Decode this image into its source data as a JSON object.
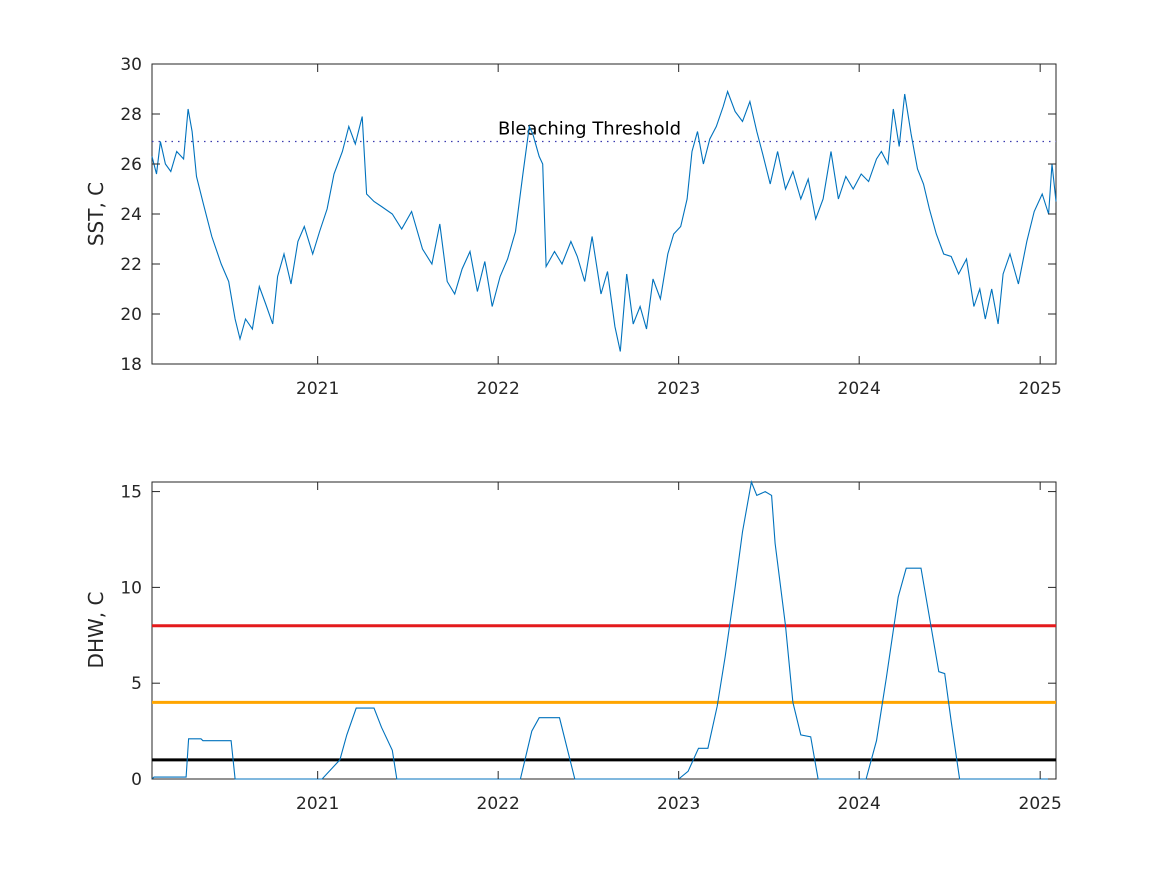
{
  "chart_data": [
    {
      "type": "line",
      "ylabel": "SST, C",
      "xlim": [
        "2020-02-01",
        "2025-02-02"
      ],
      "ylim": [
        18,
        30
      ],
      "yticks": [
        18,
        20,
        22,
        24,
        26,
        28,
        30
      ],
      "xticks": [
        {
          "date": "2021-01-01",
          "label": "2021"
        },
        {
          "date": "2022-01-01",
          "label": "2022"
        },
        {
          "date": "2023-01-01",
          "label": "2023"
        },
        {
          "date": "2024-01-01",
          "label": "2024"
        },
        {
          "date": "2025-01-01",
          "label": "2025"
        }
      ],
      "series": [
        {
          "color": "#0072BD",
          "points": [
            [
              "2020-02-01",
              26.3
            ],
            [
              "2020-02-10",
              25.6
            ],
            [
              "2020-02-18",
              26.9
            ],
            [
              "2020-02-28",
              26.0
            ],
            [
              "2020-03-10",
              25.7
            ],
            [
              "2020-03-22",
              26.5
            ],
            [
              "2020-04-05",
              26.2
            ],
            [
              "2020-04-14",
              28.2
            ],
            [
              "2020-04-22",
              27.3
            ],
            [
              "2020-05-01",
              25.5
            ],
            [
              "2020-05-15",
              24.4
            ],
            [
              "2020-06-01",
              23.1
            ],
            [
              "2020-06-20",
              22.0
            ],
            [
              "2020-07-05",
              21.3
            ],
            [
              "2020-07-18",
              19.8
            ],
            [
              "2020-07-28",
              19.0
            ],
            [
              "2020-08-08",
              19.8
            ],
            [
              "2020-08-22",
              19.4
            ],
            [
              "2020-09-05",
              21.1
            ],
            [
              "2020-09-18",
              20.4
            ],
            [
              "2020-10-02",
              19.6
            ],
            [
              "2020-10-12",
              21.5
            ],
            [
              "2020-10-25",
              22.4
            ],
            [
              "2020-11-08",
              21.2
            ],
            [
              "2020-11-22",
              22.9
            ],
            [
              "2020-12-05",
              23.5
            ],
            [
              "2020-12-22",
              22.4
            ],
            [
              "2021-01-05",
              23.3
            ],
            [
              "2021-01-20",
              24.2
            ],
            [
              "2021-02-03",
              25.6
            ],
            [
              "2021-02-20",
              26.5
            ],
            [
              "2021-03-05",
              27.5
            ],
            [
              "2021-03-18",
              26.8
            ],
            [
              "2021-04-01",
              27.9
            ],
            [
              "2021-04-10",
              24.8
            ],
            [
              "2021-04-25",
              24.5
            ],
            [
              "2021-05-10",
              24.3
            ],
            [
              "2021-06-01",
              24.0
            ],
            [
              "2021-06-20",
              23.4
            ],
            [
              "2021-07-10",
              24.1
            ],
            [
              "2021-08-01",
              22.6
            ],
            [
              "2021-08-20",
              22.0
            ],
            [
              "2021-09-05",
              23.6
            ],
            [
              "2021-09-20",
              21.3
            ],
            [
              "2021-10-05",
              20.8
            ],
            [
              "2021-10-20",
              21.8
            ],
            [
              "2021-11-05",
              22.5
            ],
            [
              "2021-11-20",
              20.9
            ],
            [
              "2021-12-05",
              22.1
            ],
            [
              "2021-12-20",
              20.3
            ],
            [
              "2022-01-05",
              21.5
            ],
            [
              "2022-01-20",
              22.2
            ],
            [
              "2022-02-05",
              23.3
            ],
            [
              "2022-02-20",
              25.6
            ],
            [
              "2022-03-05",
              27.5
            ],
            [
              "2022-03-12",
              27.2
            ],
            [
              "2022-03-25",
              26.3
            ],
            [
              "2022-04-01",
              26.0
            ],
            [
              "2022-04-08",
              21.9
            ],
            [
              "2022-04-25",
              22.5
            ],
            [
              "2022-05-10",
              22.0
            ],
            [
              "2022-05-28",
              22.9
            ],
            [
              "2022-06-10",
              22.3
            ],
            [
              "2022-06-25",
              21.3
            ],
            [
              "2022-07-10",
              23.1
            ],
            [
              "2022-07-28",
              20.8
            ],
            [
              "2022-08-10",
              21.7
            ],
            [
              "2022-08-25",
              19.5
            ],
            [
              "2022-09-05",
              18.5
            ],
            [
              "2022-09-18",
              21.6
            ],
            [
              "2022-10-01",
              19.6
            ],
            [
              "2022-10-15",
              20.3
            ],
            [
              "2022-10-28",
              19.4
            ],
            [
              "2022-11-10",
              21.4
            ],
            [
              "2022-11-25",
              20.6
            ],
            [
              "2022-12-10",
              22.4
            ],
            [
              "2022-12-22",
              23.2
            ],
            [
              "2023-01-05",
              23.5
            ],
            [
              "2023-01-18",
              24.6
            ],
            [
              "2023-01-28",
              26.5
            ],
            [
              "2023-02-08",
              27.3
            ],
            [
              "2023-02-20",
              26.0
            ],
            [
              "2023-03-05",
              27.0
            ],
            [
              "2023-03-18",
              27.5
            ],
            [
              "2023-04-01",
              28.3
            ],
            [
              "2023-04-10",
              28.9
            ],
            [
              "2023-04-25",
              28.1
            ],
            [
              "2023-05-10",
              27.7
            ],
            [
              "2023-05-25",
              28.5
            ],
            [
              "2023-06-08",
              27.3
            ],
            [
              "2023-06-20",
              26.4
            ],
            [
              "2023-07-05",
              25.2
            ],
            [
              "2023-07-20",
              26.5
            ],
            [
              "2023-08-05",
              25.0
            ],
            [
              "2023-08-20",
              25.7
            ],
            [
              "2023-09-05",
              24.6
            ],
            [
              "2023-09-20",
              25.4
            ],
            [
              "2023-10-05",
              23.8
            ],
            [
              "2023-10-20",
              24.6
            ],
            [
              "2023-11-05",
              26.5
            ],
            [
              "2023-11-20",
              24.6
            ],
            [
              "2023-12-05",
              25.5
            ],
            [
              "2023-12-20",
              25.0
            ],
            [
              "2024-01-05",
              25.6
            ],
            [
              "2024-01-20",
              25.3
            ],
            [
              "2024-02-05",
              26.2
            ],
            [
              "2024-02-15",
              26.5
            ],
            [
              "2024-02-28",
              26.0
            ],
            [
              "2024-03-10",
              28.2
            ],
            [
              "2024-03-22",
              26.7
            ],
            [
              "2024-04-02",
              28.8
            ],
            [
              "2024-04-15",
              27.2
            ],
            [
              "2024-04-28",
              25.8
            ],
            [
              "2024-05-10",
              25.2
            ],
            [
              "2024-05-22",
              24.2
            ],
            [
              "2024-06-05",
              23.2
            ],
            [
              "2024-06-20",
              22.4
            ],
            [
              "2024-07-05",
              22.3
            ],
            [
              "2024-07-20",
              21.6
            ],
            [
              "2024-08-05",
              22.2
            ],
            [
              "2024-08-20",
              20.3
            ],
            [
              "2024-09-01",
              21.0
            ],
            [
              "2024-09-12",
              19.8
            ],
            [
              "2024-09-25",
              21.0
            ],
            [
              "2024-10-08",
              19.6
            ],
            [
              "2024-10-18",
              21.6
            ],
            [
              "2024-11-01",
              22.4
            ],
            [
              "2024-11-18",
              21.2
            ],
            [
              "2024-12-05",
              22.9
            ],
            [
              "2024-12-20",
              24.1
            ],
            [
              "2025-01-05",
              24.8
            ],
            [
              "2025-01-18",
              24.0
            ],
            [
              "2025-01-25",
              26.0
            ],
            [
              "2025-02-02",
              24.5
            ]
          ]
        }
      ],
      "reference_line": {
        "y": 26.9,
        "label": "Bleaching Threshold",
        "style": "dotted",
        "color": "#3B3BAF"
      }
    },
    {
      "type": "line",
      "ylabel": "DHW, C",
      "xlim": [
        "2020-02-01",
        "2025-02-02"
      ],
      "ylim": [
        0,
        15.5
      ],
      "yticks": [
        0,
        5,
        10,
        15
      ],
      "xticks": [
        {
          "date": "2021-01-01",
          "label": "2021"
        },
        {
          "date": "2022-01-01",
          "label": "2022"
        },
        {
          "date": "2023-01-01",
          "label": "2023"
        },
        {
          "date": "2024-01-01",
          "label": "2024"
        },
        {
          "date": "2025-01-01",
          "label": "2025"
        }
      ],
      "series": [
        {
          "color": "#0072BD",
          "points": [
            [
              "2020-02-01",
              0.0
            ],
            [
              "2020-02-05",
              0.1
            ],
            [
              "2020-04-10",
              0.1
            ],
            [
              "2020-04-15",
              2.1
            ],
            [
              "2020-05-10",
              2.1
            ],
            [
              "2020-05-14",
              2.0
            ],
            [
              "2020-07-10",
              2.0
            ],
            [
              "2020-07-18",
              0.0
            ],
            [
              "2021-01-10",
              0.0
            ],
            [
              "2021-02-15",
              1.0
            ],
            [
              "2021-03-01",
              2.3
            ],
            [
              "2021-03-20",
              3.7
            ],
            [
              "2021-04-25",
              3.7
            ],
            [
              "2021-05-10",
              2.7
            ],
            [
              "2021-06-01",
              1.5
            ],
            [
              "2021-06-10",
              0.0
            ],
            [
              "2022-02-15",
              0.0
            ],
            [
              "2022-03-10",
              2.5
            ],
            [
              "2022-03-25",
              3.2
            ],
            [
              "2022-05-05",
              3.2
            ],
            [
              "2022-06-05",
              0.0
            ],
            [
              "2023-01-01",
              0.0
            ],
            [
              "2023-01-20",
              0.4
            ],
            [
              "2023-02-10",
              1.6
            ],
            [
              "2023-03-01",
              1.6
            ],
            [
              "2023-03-20",
              3.8
            ],
            [
              "2023-04-05",
              6.4
            ],
            [
              "2023-04-25",
              10.0
            ],
            [
              "2023-05-10",
              12.9
            ],
            [
              "2023-05-28",
              15.5
            ],
            [
              "2023-06-08",
              14.8
            ],
            [
              "2023-06-25",
              15.0
            ],
            [
              "2023-07-08",
              14.8
            ],
            [
              "2023-07-15",
              12.3
            ],
            [
              "2023-08-05",
              8.0
            ],
            [
              "2023-08-20",
              4.0
            ],
            [
              "2023-09-05",
              2.3
            ],
            [
              "2023-09-25",
              2.2
            ],
            [
              "2023-10-10",
              0.0
            ],
            [
              "2024-01-15",
              0.0
            ],
            [
              "2024-02-05",
              2.0
            ],
            [
              "2024-02-25",
              5.3
            ],
            [
              "2024-03-20",
              9.5
            ],
            [
              "2024-04-05",
              11.0
            ],
            [
              "2024-05-05",
              11.0
            ],
            [
              "2024-05-25",
              8.0
            ],
            [
              "2024-06-10",
              5.6
            ],
            [
              "2024-06-22",
              5.5
            ],
            [
              "2024-07-05",
              3.0
            ],
            [
              "2024-07-22",
              0.0
            ],
            [
              "2025-02-02",
              0.0
            ]
          ]
        }
      ],
      "reference_lines": [
        {
          "y": 8,
          "color": "#E41A1C"
        },
        {
          "y": 4,
          "color": "#FFA500"
        },
        {
          "y": 1,
          "color": "#000000"
        }
      ]
    }
  ]
}
